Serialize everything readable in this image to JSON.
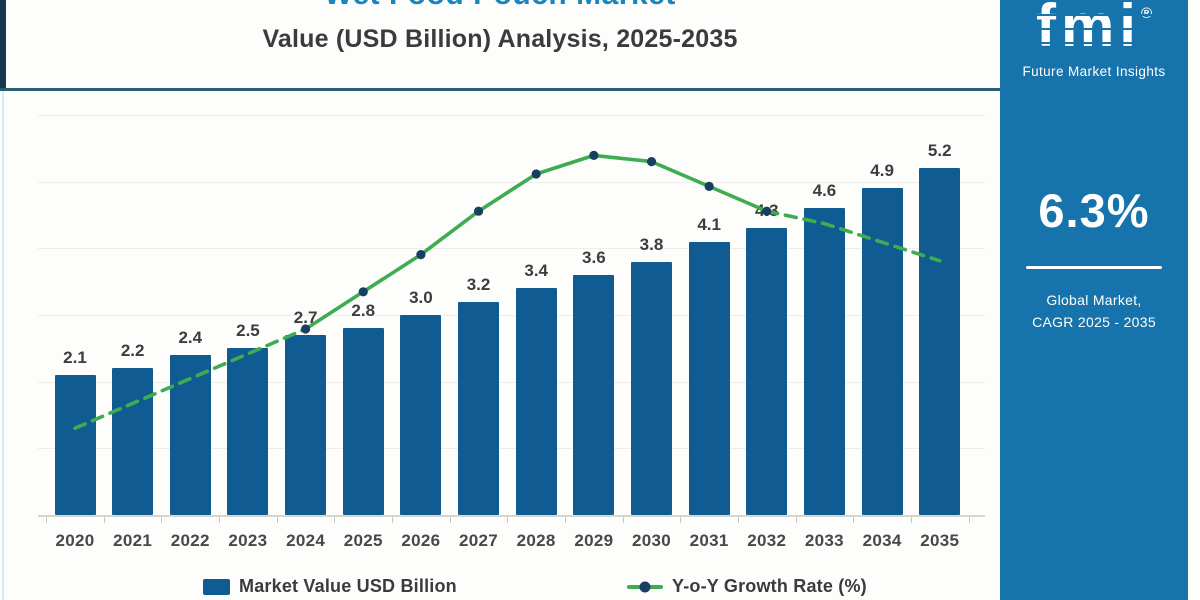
{
  "title": {
    "line1": "Wet Food Pouch Market",
    "line2": "Value (USD Billion) Analysis, 2025-2035"
  },
  "legend": {
    "bar_label": "Market Value USD Billion",
    "line_label": "Y-o-Y Growth Rate (%)"
  },
  "sidebar": {
    "logo": "fmi",
    "logo_reg": "®",
    "logo_subtitle": "Future Market Insights",
    "cagr_value": "6.3%",
    "cagr_caption_line1": "Global Market,",
    "cagr_caption_line2": "CAGR 2025 - 2035"
  },
  "chart_data": {
    "type": "bar",
    "combo": "bar+line",
    "title": "Wet Food Pouch Market Value (USD Billion) Analysis, 2025-2035",
    "categories": [
      "2020",
      "2021",
      "2022",
      "2023",
      "2024",
      "2025",
      "2026",
      "2027",
      "2028",
      "2029",
      "2030",
      "2031",
      "2032",
      "2033",
      "2034",
      "2035"
    ],
    "series": [
      {
        "name": "Market Value USD Billion",
        "type": "bar",
        "unit": "USD Billion",
        "values": [
          2.1,
          2.2,
          2.4,
          2.5,
          2.7,
          2.8,
          3.0,
          3.2,
          3.4,
          3.6,
          3.8,
          4.1,
          4.3,
          4.6,
          4.9,
          5.2
        ],
        "value_labels": [
          "2.1",
          "2.2",
          "2.4",
          "2.5",
          "2.7",
          "2.8",
          "3.0",
          "3.2",
          "3.4",
          "3.6",
          "3.8",
          "4.1",
          "4.3",
          "4.6",
          "4.9",
          "5.2"
        ],
        "color": "#0F5B92"
      },
      {
        "name": "Y-o-Y Growth Rate (%)",
        "type": "line",
        "unit": "%",
        "values": [
          1.4,
          1.8,
          2.2,
          2.6,
          3.0,
          3.6,
          4.2,
          4.9,
          5.5,
          5.8,
          5.7,
          5.3,
          4.9,
          4.7,
          4.4,
          4.1
        ],
        "note": "secondary axis is unlabeled in the image; values estimated from line position",
        "color": "#3EAC50",
        "marker_color": "#174060",
        "dashed_segments": [
          "2020-2024",
          "2032-2035"
        ],
        "solid_segment": "2024-2032",
        "markers_on_years": [
          "2024",
          "2025",
          "2026",
          "2027",
          "2028",
          "2029",
          "2030",
          "2031",
          "2032"
        ]
      }
    ],
    "bar_axis_range": [
      0,
      6.3
    ],
    "grid": "faint horizontal gridlines, no y-axis tick labels",
    "legend_position": "bottom"
  },
  "colors": {
    "bar": "#0F5B92",
    "line": "#3EAC50",
    "marker": "#174060",
    "sidebar_bg": "#1773AB",
    "title_accent": "#1886BC",
    "accent_bar": "#17374E",
    "top_rule": "#2A5F70"
  }
}
